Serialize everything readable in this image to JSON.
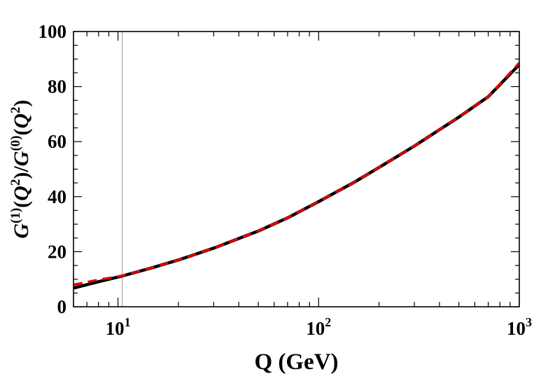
{
  "chart_data": {
    "type": "line",
    "title": "",
    "xlabel": "Q (GeV)",
    "ylabel": "G^(1)(Q^2)/G^(0)(Q^2)",
    "xscale": "log",
    "xlim": [
      6,
      1000
    ],
    "ylim": [
      0,
      100
    ],
    "grid": false,
    "legend": "none",
    "x_ticks": [
      {
        "value": 10,
        "base": "10",
        "exp": "1"
      },
      {
        "value": 100,
        "base": "10",
        "exp": "2"
      },
      {
        "value": 1000,
        "base": "10",
        "exp": "3"
      }
    ],
    "y_ticks": [
      0,
      20,
      40,
      60,
      80,
      100
    ],
    "y_tick_labels": [
      "0",
      "20",
      "40",
      "60",
      "80",
      "100"
    ],
    "reference_line_x": 10.5,
    "series": [
      {
        "style": "solid",
        "color": "#000000",
        "x": [
          6,
          8,
          10,
          10.5,
          15,
          20,
          30,
          50,
          70,
          100,
          150,
          200,
          300,
          500,
          700,
          1000
        ],
        "y": [
          6.8,
          9.1,
          10.8,
          11.2,
          14.3,
          17.0,
          21.3,
          27.5,
          32.3,
          38.2,
          45.2,
          50.6,
          58.4,
          68.9,
          76.3,
          88.0
        ]
      },
      {
        "style": "dashed",
        "color": "#e00000",
        "x": [
          6,
          8,
          10,
          10.5,
          15,
          20,
          30,
          50,
          70,
          100,
          150,
          200,
          300,
          500,
          700,
          1000
        ],
        "y": [
          8.0,
          9.8,
          11.0,
          11.3,
          14.3,
          17.0,
          21.3,
          27.5,
          32.3,
          38.2,
          45.2,
          50.6,
          58.4,
          68.9,
          76.3,
          88.6
        ]
      }
    ]
  }
}
